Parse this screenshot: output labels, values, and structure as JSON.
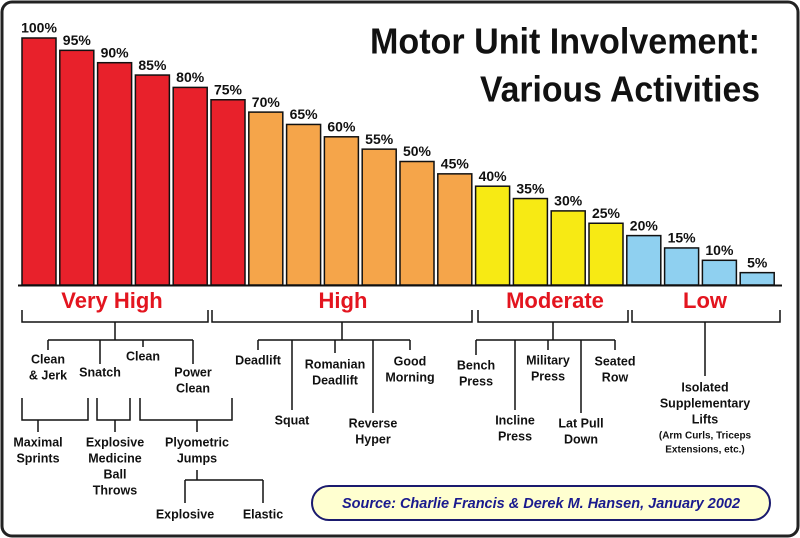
{
  "chart_data": {
    "type": "bar",
    "title_lines": [
      "Motor Unit Involvement:",
      "Various Activities"
    ],
    "values": [
      100,
      95,
      90,
      85,
      80,
      75,
      70,
      65,
      60,
      55,
      50,
      45,
      40,
      35,
      30,
      25,
      20,
      15,
      10,
      5
    ],
    "value_labels": [
      "100%",
      "95%",
      "90%",
      "85%",
      "80%",
      "75%",
      "70%",
      "65%",
      "60%",
      "55%",
      "50%",
      "45%",
      "40%",
      "35%",
      "30%",
      "25%",
      "20%",
      "15%",
      "10%",
      "5%"
    ],
    "colors": [
      "#e8212b",
      "#e8212b",
      "#e8212b",
      "#e8212b",
      "#e8212b",
      "#e8212b",
      "#f5a54a",
      "#f5a54a",
      "#f5a54a",
      "#f5a54a",
      "#f5a54a",
      "#f5a54a",
      "#f7ea14",
      "#f7ea14",
      "#f7ea14",
      "#f7ea14",
      "#8fd0f0",
      "#8fd0f0",
      "#8fd0f0",
      "#8fd0f0"
    ],
    "ylim": [
      0,
      100
    ],
    "groups": [
      {
        "name": "Very High",
        "color": "#e3151f"
      },
      {
        "name": "High",
        "color": "#e3151f"
      },
      {
        "name": "Moderate",
        "color": "#e3151f"
      },
      {
        "name": "Low",
        "color": "#e3151f"
      }
    ],
    "activities": [
      {
        "lines": [
          "Clean",
          "& Jerk"
        ]
      },
      {
        "lines": [
          "Snatch"
        ]
      },
      {
        "lines": [
          "Clean"
        ]
      },
      {
        "lines": [
          "Power",
          "Clean"
        ]
      },
      {
        "lines": [
          "Maximal",
          "Sprints"
        ]
      },
      {
        "lines": [
          "Explosive",
          "Medicine",
          "Ball",
          "Throws"
        ]
      },
      {
        "lines": [
          "Plyometric",
          "Jumps"
        ]
      },
      {
        "lines": [
          "Explosive"
        ]
      },
      {
        "lines": [
          "Elastic"
        ]
      },
      {
        "lines": [
          "Deadlift"
        ]
      },
      {
        "lines": [
          "Squat"
        ]
      },
      {
        "lines": [
          "Romanian",
          "Deadlift"
        ]
      },
      {
        "lines": [
          "Reverse",
          "Hyper"
        ]
      },
      {
        "lines": [
          "Good",
          "Morning"
        ]
      },
      {
        "lines": [
          "Bench",
          "Press"
        ]
      },
      {
        "lines": [
          "Incline",
          "Press"
        ]
      },
      {
        "lines": [
          "Military",
          "Press"
        ]
      },
      {
        "lines": [
          "Lat Pull",
          "Down"
        ]
      },
      {
        "lines": [
          "Seated",
          "Row"
        ]
      },
      {
        "lines": [
          "Isolated",
          "Supplementary",
          "Lifts"
        ]
      },
      {
        "lines": [
          "(Arm Curls, Triceps",
          "Extensions, etc.)"
        ]
      }
    ],
    "source": "Source:  Charlie Francis & Derek M. Hansen, January 2002"
  }
}
